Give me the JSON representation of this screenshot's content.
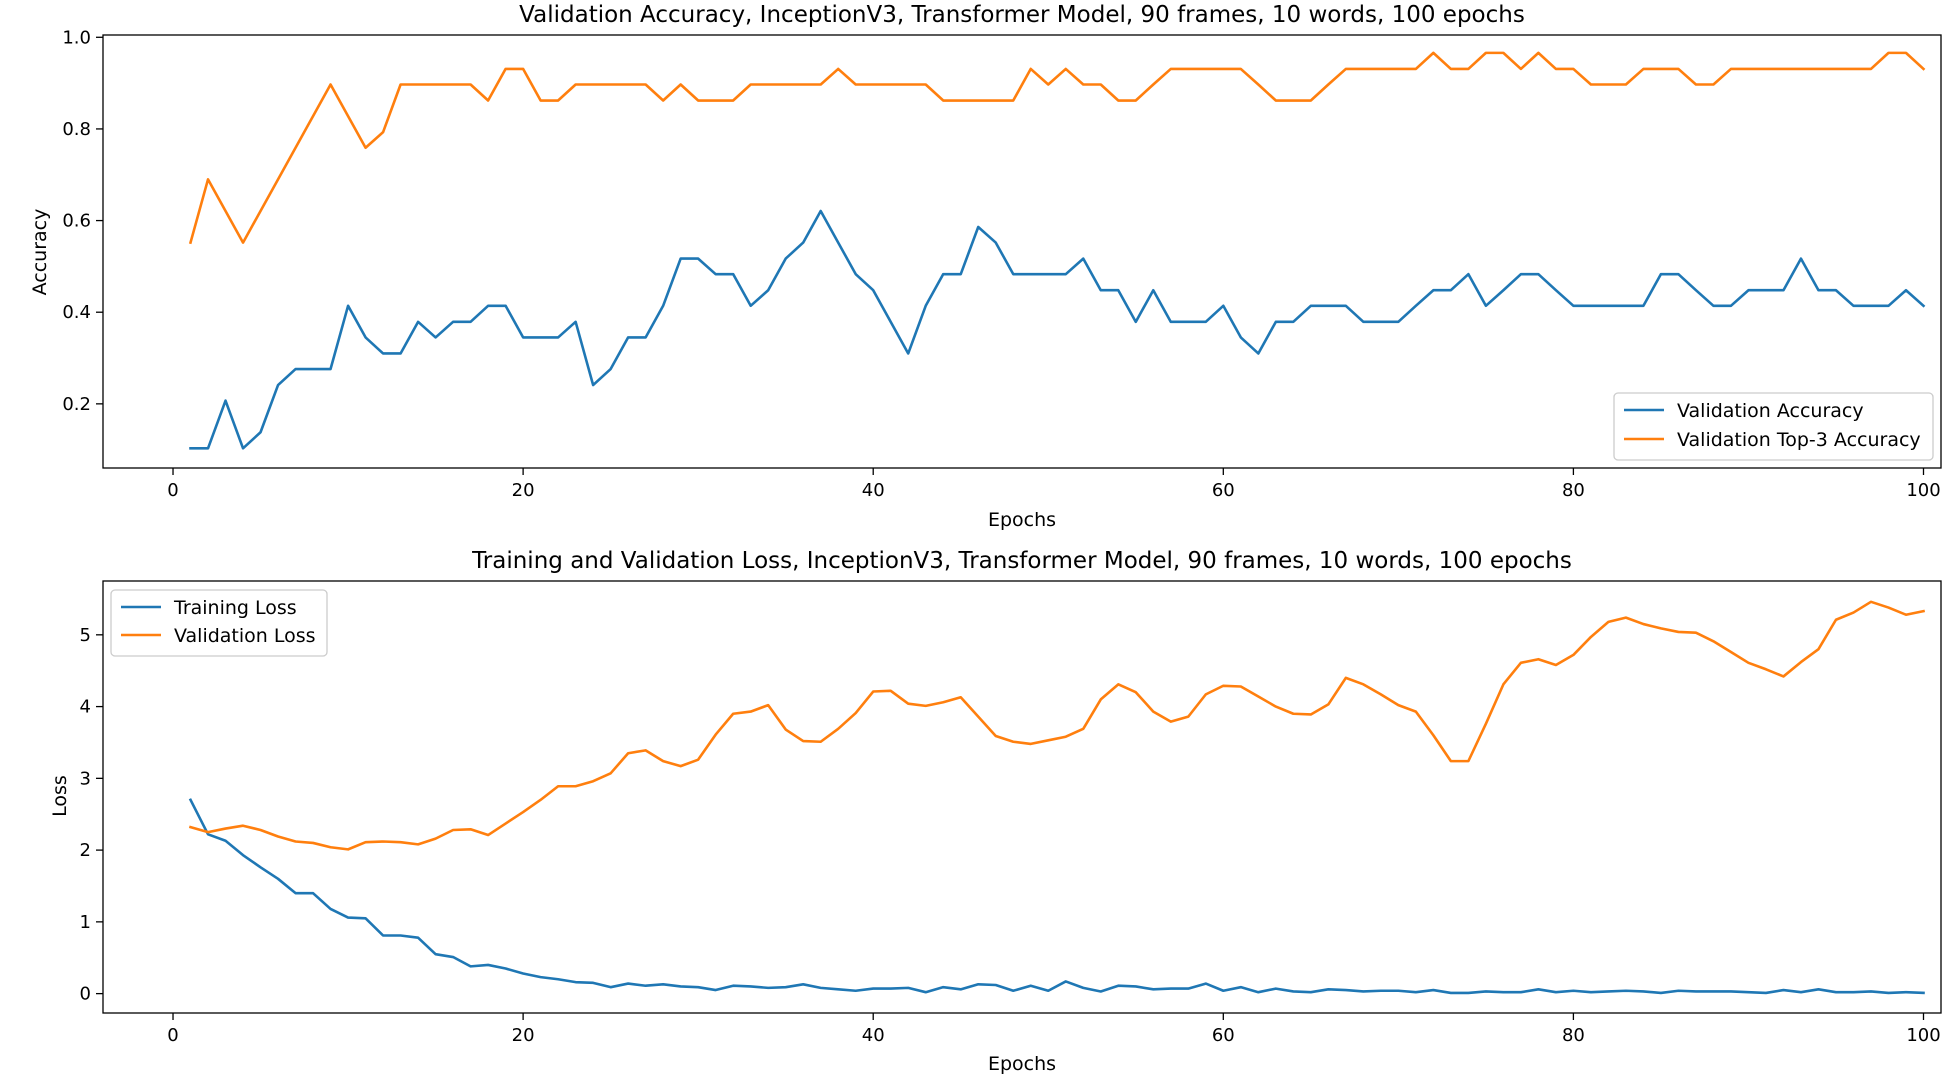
{
  "chart_data": [
    {
      "type": "line",
      "title": "Validation Accuracy, InceptionV3, Transformer Model, 90 frames, 10 words, 100 epochs",
      "xlabel": "Epochs",
      "ylabel": "Accuracy",
      "xlim": [
        -4,
        101
      ],
      "ylim": [
        0.06,
        1.005
      ],
      "xticks": [
        0,
        20,
        40,
        60,
        80,
        100
      ],
      "xtick_labels": [
        "0",
        "20",
        "40",
        "60",
        "80",
        "100"
      ],
      "yticks": [
        0.2,
        0.4,
        0.6,
        0.8,
        1.0
      ],
      "ytick_labels": [
        "0.2",
        "0.4",
        "0.6",
        "0.8",
        "1.0"
      ],
      "grid": false,
      "legend_position": "lower-right",
      "x": [
        1,
        2,
        3,
        4,
        5,
        6,
        7,
        8,
        9,
        10,
        11,
        12,
        13,
        14,
        15,
        16,
        17,
        18,
        19,
        20,
        21,
        22,
        23,
        24,
        25,
        26,
        27,
        28,
        29,
        30,
        31,
        32,
        33,
        34,
        35,
        36,
        37,
        38,
        39,
        40,
        41,
        42,
        43,
        44,
        45,
        46,
        47,
        48,
        49,
        50,
        51,
        52,
        53,
        54,
        55,
        56,
        57,
        58,
        59,
        60,
        61,
        62,
        63,
        64,
        65,
        66,
        67,
        68,
        69,
        70,
        71,
        72,
        73,
        74,
        75,
        76,
        77,
        78,
        79,
        80,
        81,
        82,
        83,
        84,
        85,
        86,
        87,
        88,
        89,
        90,
        91,
        92,
        93,
        94,
        95,
        96,
        97,
        98,
        99,
        100
      ],
      "series": [
        {
          "name": "Validation Accuracy",
          "color": "#1f77b4",
          "values": [
            0.103,
            0.103,
            0.207,
            0.103,
            0.138,
            0.241,
            0.276,
            0.276,
            0.276,
            0.414,
            0.345,
            0.31,
            0.31,
            0.379,
            0.345,
            0.379,
            0.379,
            0.414,
            0.414,
            0.345,
            0.345,
            0.345,
            0.379,
            0.241,
            0.276,
            0.345,
            0.345,
            0.414,
            0.517,
            0.517,
            0.483,
            0.483,
            0.414,
            0.448,
            0.517,
            0.552,
            0.621,
            0.552,
            0.483,
            0.448,
            0.379,
            0.31,
            0.414,
            0.483,
            0.483,
            0.586,
            0.552,
            0.483,
            0.483,
            0.483,
            0.483,
            0.517,
            0.448,
            0.448,
            0.379,
            0.448,
            0.379,
            0.379,
            0.379,
            0.414,
            0.345,
            0.31,
            0.379,
            0.379,
            0.414,
            0.414,
            0.414,
            0.379,
            0.379,
            0.379,
            0.414,
            0.448,
            0.448,
            0.483,
            0.414,
            0.448,
            0.483,
            0.483,
            0.448,
            0.414,
            0.414,
            0.414,
            0.414,
            0.414,
            0.483,
            0.483,
            0.448,
            0.414,
            0.414,
            0.448,
            0.448,
            0.448,
            0.517,
            0.448,
            0.448,
            0.414,
            0.414,
            0.414,
            0.448,
            0.414
          ]
        },
        {
          "name": "Validation Top-3 Accuracy",
          "color": "#ff7f0e",
          "values": [
            0.552,
            0.69,
            0.621,
            0.552,
            0.621,
            0.69,
            0.759,
            0.828,
            0.897,
            0.828,
            0.759,
            0.793,
            0.897,
            0.897,
            0.897,
            0.897,
            0.897,
            0.862,
            0.931,
            0.931,
            0.862,
            0.862,
            0.897,
            0.897,
            0.897,
            0.897,
            0.897,
            0.862,
            0.897,
            0.862,
            0.862,
            0.862,
            0.897,
            0.897,
            0.897,
            0.897,
            0.897,
            0.931,
            0.897,
            0.897,
            0.897,
            0.897,
            0.897,
            0.862,
            0.862,
            0.862,
            0.862,
            0.862,
            0.931,
            0.897,
            0.931,
            0.897,
            0.897,
            0.862,
            0.862,
            0.897,
            0.931,
            0.931,
            0.931,
            0.931,
            0.931,
            0.897,
            0.862,
            0.862,
            0.862,
            0.897,
            0.931,
            0.931,
            0.931,
            0.931,
            0.931,
            0.966,
            0.931,
            0.931,
            0.966,
            0.966,
            0.931,
            0.966,
            0.931,
            0.931,
            0.897,
            0.897,
            0.897,
            0.931,
            0.931,
            0.931,
            0.897,
            0.897,
            0.931,
            0.931,
            0.931,
            0.931,
            0.931,
            0.931,
            0.931,
            0.931,
            0.931,
            0.966,
            0.966,
            0.931
          ]
        }
      ]
    },
    {
      "type": "line",
      "title": "Training and Validation Loss, InceptionV3, Transformer Model, 90 frames, 10 words, 100 epochs",
      "xlabel": "Epochs",
      "ylabel": "Loss",
      "xlim": [
        -4,
        101
      ],
      "ylim": [
        -0.27,
        5.75
      ],
      "xticks": [
        0,
        20,
        40,
        60,
        80,
        100
      ],
      "xtick_labels": [
        "0",
        "20",
        "40",
        "60",
        "80",
        "100"
      ],
      "yticks": [
        0,
        1,
        2,
        3,
        4,
        5
      ],
      "ytick_labels": [
        "0",
        "1",
        "2",
        "3",
        "4",
        "5"
      ],
      "grid": false,
      "legend_position": "upper-left",
      "x": [
        1,
        2,
        3,
        4,
        5,
        6,
        7,
        8,
        9,
        10,
        11,
        12,
        13,
        14,
        15,
        16,
        17,
        18,
        19,
        20,
        21,
        22,
        23,
        24,
        25,
        26,
        27,
        28,
        29,
        30,
        31,
        32,
        33,
        34,
        35,
        36,
        37,
        38,
        39,
        40,
        41,
        42,
        43,
        44,
        45,
        46,
        47,
        48,
        49,
        50,
        51,
        52,
        53,
        54,
        55,
        56,
        57,
        58,
        59,
        60,
        61,
        62,
        63,
        64,
        65,
        66,
        67,
        68,
        69,
        70,
        71,
        72,
        73,
        74,
        75,
        76,
        77,
        78,
        79,
        80,
        81,
        82,
        83,
        84,
        85,
        86,
        87,
        88,
        89,
        90,
        91,
        92,
        93,
        94,
        95,
        96,
        97,
        98,
        99,
        100
      ],
      "series": [
        {
          "name": "Training Loss",
          "color": "#1f77b4",
          "values": [
            2.7,
            2.22,
            2.13,
            1.93,
            1.76,
            1.6,
            1.4,
            1.4,
            1.18,
            1.06,
            1.05,
            0.81,
            0.81,
            0.78,
            0.55,
            0.51,
            0.38,
            0.4,
            0.35,
            0.28,
            0.23,
            0.2,
            0.16,
            0.15,
            0.09,
            0.14,
            0.11,
            0.13,
            0.1,
            0.09,
            0.05,
            0.11,
            0.1,
            0.08,
            0.09,
            0.13,
            0.08,
            0.06,
            0.04,
            0.07,
            0.07,
            0.08,
            0.02,
            0.09,
            0.06,
            0.13,
            0.12,
            0.04,
            0.11,
            0.04,
            0.17,
            0.08,
            0.03,
            0.11,
            0.1,
            0.06,
            0.07,
            0.07,
            0.14,
            0.04,
            0.09,
            0.02,
            0.07,
            0.03,
            0.02,
            0.06,
            0.05,
            0.03,
            0.04,
            0.04,
            0.02,
            0.05,
            0.01,
            0.01,
            0.03,
            0.02,
            0.02,
            0.06,
            0.02,
            0.04,
            0.02,
            0.03,
            0.04,
            0.03,
            0.01,
            0.04,
            0.03,
            0.03,
            0.03,
            0.02,
            0.01,
            0.05,
            0.02,
            0.06,
            0.02,
            0.02,
            0.03,
            0.01,
            0.02,
            0.01
          ]
        },
        {
          "name": "Validation Loss",
          "color": "#ff7f0e",
          "values": [
            2.32,
            2.25,
            2.3,
            2.34,
            2.28,
            2.19,
            2.12,
            2.1,
            2.04,
            2.01,
            2.11,
            2.12,
            2.11,
            2.08,
            2.16,
            2.28,
            2.29,
            2.21,
            2.37,
            2.53,
            2.7,
            2.89,
            2.89,
            2.96,
            3.07,
            3.35,
            3.39,
            3.24,
            3.17,
            3.26,
            3.61,
            3.9,
            3.93,
            4.02,
            3.68,
            3.52,
            3.51,
            3.69,
            3.91,
            4.21,
            4.22,
            4.04,
            4.01,
            4.06,
            4.13,
            3.86,
            3.59,
            3.51,
            3.48,
            3.53,
            3.58,
            3.69,
            4.1,
            4.31,
            4.2,
            3.93,
            3.79,
            3.86,
            4.17,
            4.29,
            4.28,
            4.14,
            4.0,
            3.9,
            3.89,
            4.03,
            4.4,
            4.31,
            4.17,
            4.02,
            3.93,
            3.6,
            3.24,
            3.24,
            3.76,
            4.31,
            4.61,
            4.66,
            4.58,
            4.72,
            4.97,
            5.18,
            5.24,
            5.15,
            5.09,
            5.04,
            5.03,
            4.91,
            4.76,
            4.61,
            4.52,
            4.42,
            4.62,
            4.8,
            5.21,
            5.31,
            5.46,
            5.38,
            5.28,
            5.33
          ]
        }
      ]
    }
  ]
}
